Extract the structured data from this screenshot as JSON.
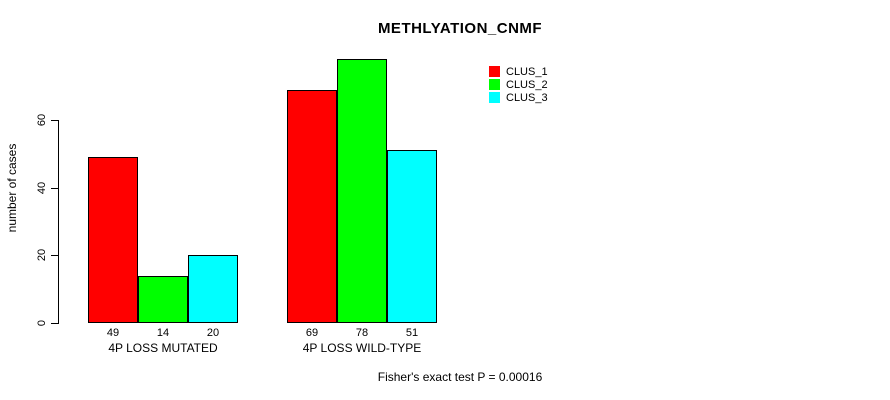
{
  "chart_data": {
    "type": "bar",
    "title": "METHLYATION_CNMF",
    "ylabel": "number of cases",
    "xlabel": "",
    "categories": [
      "4P LOSS MUTATED",
      "4P LOSS WILD-TYPE"
    ],
    "series": [
      {
        "name": "CLUS_1",
        "color": "#ff0000",
        "values": [
          49,
          69
        ]
      },
      {
        "name": "CLUS_2",
        "color": "#00ff00",
        "values": [
          14,
          78
        ]
      },
      {
        "name": "CLUS_3",
        "color": "#00ffff",
        "values": [
          20,
          51
        ]
      }
    ],
    "yticks": [
      0,
      20,
      40,
      60
    ],
    "ylim": [
      0,
      80
    ],
    "grid": false,
    "bar_value_labels": [
      [
        49,
        14,
        20
      ],
      [
        69,
        78,
        51
      ]
    ],
    "legend_position": "top-right",
    "legend_entries": [
      "CLUS_1",
      "CLUS_2",
      "CLUS_3"
    ],
    "annotation": "Fisher's exact test P = 0.00016"
  },
  "colors": {
    "background": "#ffffff",
    "axis": "#000000",
    "text": "#000000",
    "bar_border": "#000000"
  }
}
